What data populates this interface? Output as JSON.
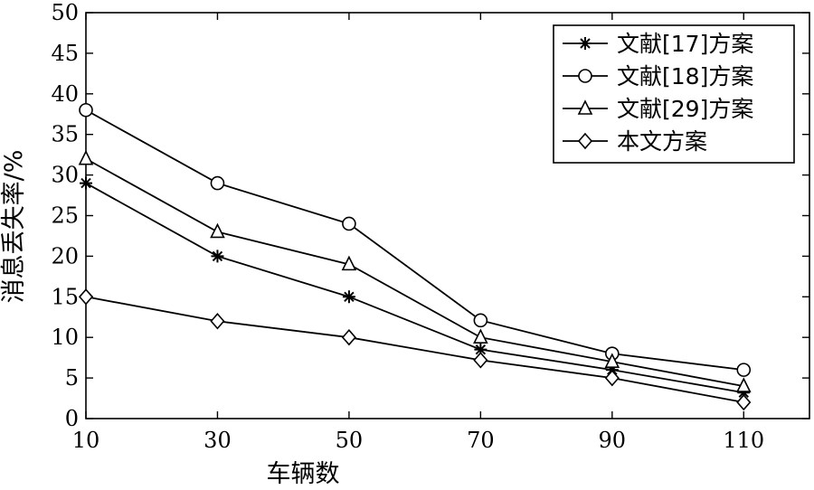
{
  "chart_data": {
    "type": "line",
    "xlabel": "车辆数",
    "ylabel": "消息丢失率/%",
    "x": [
      10,
      30,
      50,
      70,
      90,
      110
    ],
    "xlim": [
      10,
      120
    ],
    "ylim": [
      0,
      50
    ],
    "xticks": [
      "10",
      "30",
      "50",
      "70",
      "90",
      "110"
    ],
    "yticks": [
      "0",
      "5",
      "10",
      "15",
      "20",
      "25",
      "30",
      "35",
      "40",
      "45",
      "50"
    ],
    "grid": false,
    "legend_position": "top-right",
    "series": [
      {
        "name": "文献[17]方案",
        "marker": "star",
        "values": [
          29,
          20,
          15,
          8.5,
          6,
          3.2
        ]
      },
      {
        "name": "文献[18]方案",
        "marker": "circle",
        "values": [
          38,
          29,
          24,
          12.1,
          8,
          6
        ]
      },
      {
        "name": "文献[29]方案",
        "marker": "triangle",
        "values": [
          32,
          23,
          19,
          10,
          7,
          4
        ]
      },
      {
        "name": "本文方案",
        "marker": "diamond",
        "values": [
          15,
          12,
          10,
          7.2,
          5,
          2
        ]
      }
    ]
  }
}
